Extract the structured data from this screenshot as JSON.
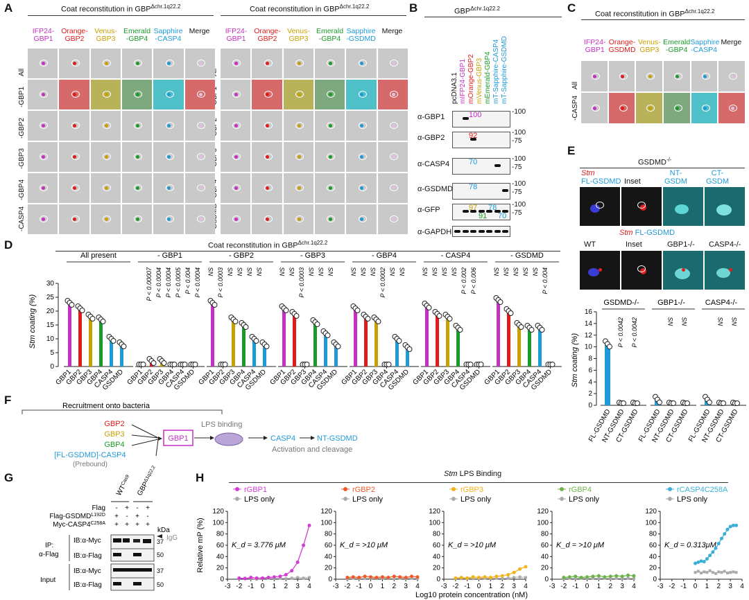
{
  "panels": {
    "A": "A",
    "B": "B",
    "C": "C",
    "D": "D",
    "E": "E",
    "F": "F",
    "G": "G",
    "H": "H"
  },
  "panel_a": {
    "title_left": "Coat reconstitution in GBP",
    "title_sup": "Δchr.1q22.2",
    "left": {
      "columns": [
        {
          "label": "IFP24-\nGBP1",
          "color": "#c330c3"
        },
        {
          "label": "Orange-\nGBP2",
          "color": "#e01b1b"
        },
        {
          "label": "Venus-\nGBP3",
          "color": "#c8a000"
        },
        {
          "label": "Emerald\n-GBP4",
          "color": "#1a9a2a"
        },
        {
          "label": "Sapphire\n-CASP4",
          "color": "#1e9ad6"
        },
        {
          "label": "Merge",
          "color": "#111111"
        }
      ],
      "rows": [
        "All",
        "-GBP1",
        "-GBP2",
        "-GBP3",
        "-GBP4",
        "-CASP4"
      ]
    },
    "right": {
      "columns": [
        {
          "label": "IFP24-\nGBP1",
          "color": "#c330c3"
        },
        {
          "label": "Orange-\nGBP2",
          "color": "#e01b1b"
        },
        {
          "label": "Venus-\nGBP3",
          "color": "#c8a000"
        },
        {
          "label": "Emerald\n-GBP4",
          "color": "#1a9a2a"
        },
        {
          "label": "Sapphire\n-GSDMD",
          "color": "#1e9ad6"
        },
        {
          "label": "Merge",
          "color": "#111111"
        }
      ],
      "rows": [
        "All",
        "-GBP1",
        "-GBP2",
        "-GBP3",
        "-GBP4",
        "-GSDMD"
      ]
    }
  },
  "panel_b": {
    "title": "GBP",
    "title_sup": "Δchr.1q22.2",
    "lanes": [
      {
        "label": "pcDNA3.1",
        "color": "#111111"
      },
      {
        "label": "mIFP24-GBP1",
        "color": "#c330c3"
      },
      {
        "label": "mOrange-GBP2",
        "color": "#e01b1b"
      },
      {
        "label": "mVenus-GBP3",
        "color": "#c8a000"
      },
      {
        "label": "mEmerald-GBP4",
        "color": "#1a9a2a"
      },
      {
        "label": "mT-Sapphire-CASP4",
        "color": "#1e9ad6"
      },
      {
        "label": "mT-Sapphire-GSDMD",
        "color": "#1e9ad6"
      }
    ],
    "blots": [
      {
        "label": "α-GBP1",
        "markers": [
          "100"
        ],
        "size_labels": [
          {
            "text": "100",
            "color": "#c330c3"
          }
        ]
      },
      {
        "label": "α-GBP2",
        "markers": [
          "100",
          "75"
        ],
        "size_labels": [
          {
            "text": "92",
            "color": "#e01b1b"
          }
        ]
      },
      {
        "label": "α-CASP4",
        "markers": [
          "100",
          "75"
        ],
        "size_labels": [
          {
            "text": "70",
            "color": "#1e9ad6"
          }
        ]
      },
      {
        "label": "α-GSDMD",
        "markers": [
          "100",
          "75"
        ],
        "size_labels": [
          {
            "text": "78",
            "color": "#1e9ad6"
          }
        ]
      },
      {
        "label": "α-GFP",
        "markers": [
          "100",
          "75"
        ],
        "size_labels": [
          {
            "text": "97",
            "color": "#c8a000"
          },
          {
            "text": "91",
            "color": "#1a9a2a"
          },
          {
            "text": "78",
            "color": "#1e9ad6"
          },
          {
            "text": "70",
            "color": "#1e9ad6"
          }
        ]
      },
      {
        "label": "α-GAPDH",
        "markers": [],
        "size_labels": []
      }
    ]
  },
  "panel_c": {
    "title": "Coat reconstitution in GBP",
    "title_sup": "Δchr.1q22.2",
    "columns": [
      {
        "label": "IFP24-\nGBP1",
        "color": "#c330c3"
      },
      {
        "label": "Orange-\nGSDMD",
        "color": "#e01b1b"
      },
      {
        "label": "Venus-\nGBP3",
        "color": "#c8a000"
      },
      {
        "label": "Emerald\n-GBP4",
        "color": "#1a9a2a"
      },
      {
        "label": "Sapphire\n-CASP4",
        "color": "#1e9ad6"
      },
      {
        "label": "Merge",
        "color": "#111111"
      }
    ],
    "rows": [
      "All",
      "-CASP4"
    ]
  },
  "panel_d": {
    "title": "Coat reconstitution in GBP",
    "title_sup": "Δchr.1q22.2",
    "ylabel": "Stm coating (%)",
    "yticks": [
      "0",
      "5",
      "10",
      "15",
      "20",
      "25",
      "30"
    ]
  },
  "panel_e": {
    "top_title": "GSDMD",
    "top_title_sup": "-/-",
    "top_labels": [
      {
        "text": "Stm",
        "color": "#e01b1b",
        "italic": true
      },
      {
        "text": "FL-GSDMD",
        "color": "#1e9ad6"
      },
      {
        "text": "Inset",
        "color": "#111111"
      },
      {
        "text": "NT-\nGSDM",
        "color": "#1e9ad6"
      },
      {
        "text": "CT-\nGSDM",
        "color": "#1e9ad6"
      }
    ],
    "mid_title_stm": "Stm",
    "mid_title_rest": "FL-GSDMD",
    "mid_labels": [
      "WT",
      "Inset",
      "GBP1-/-",
      "CASP4-/-"
    ],
    "ylabel": "Stm coating (%)",
    "yticks": [
      "0",
      "2",
      "4",
      "6",
      "8",
      "10",
      "12",
      "14",
      "16"
    ]
  },
  "panel_f": {
    "bracket_label": "Recruitment onto bacteria",
    "list": [
      {
        "text": "GBP2",
        "color": "#e01b1b"
      },
      {
        "text": "GBP3",
        "color": "#c8a000"
      },
      {
        "text": "GBP4",
        "color": "#1a9a2a"
      },
      {
        "text": "[FL-GSDMD]-CASP4",
        "color": "#1e9ad6"
      }
    ],
    "prebound": "(Prebound)",
    "gbp1": "GBP1",
    "lps_binding": "LPS binding",
    "casp4": "CASP4",
    "nt": "NT-GSDMD",
    "activation": "Activation and cleavage"
  },
  "panel_g": {
    "col1": "WT",
    "col1_sup": "Cas9",
    "col2": "GBP",
    "col2_sup": "Δ1q22.2",
    "rows": [
      {
        "label": "Flag",
        "vals": [
          "-",
          "+",
          "-",
          "+"
        ]
      },
      {
        "label": "Flag-GSDMD",
        "sup": "L192D",
        "vals": [
          "+",
          "-",
          "+",
          "-"
        ]
      },
      {
        "label": "Myc-CASP4",
        "sup": "C258A",
        "vals": [
          "+",
          "+",
          "+",
          "+"
        ]
      }
    ],
    "kda": "kDa",
    "ip": "IP:",
    "ip2": "α-Flag",
    "input": "Input",
    "ib_myc": "IB:α-Myc",
    "ib_flag": "IB:α-Flag",
    "igg": "IgG",
    "markers": [
      "37",
      "50",
      "37",
      "50"
    ]
  },
  "panel_h": {
    "title": "Stm LPS Binding",
    "ylabel": "Relative mP (%)",
    "xlabel": "Log10 protein concentration (nM)",
    "lps_only": "LPS only"
  },
  "chart_data": [
    {
      "id": "panel_D",
      "type": "bar",
      "title": "Coat reconstitution in GBPΔchr.1q22.2",
      "ylabel": "Stm coating (%)",
      "ylim": [
        0,
        30
      ],
      "categories": [
        "GBP1",
        "GBP2",
        "GBP3",
        "GBP4",
        "CASP4",
        "GSDMD"
      ],
      "bar_colors": [
        "#c330c3",
        "#e01b1b",
        "#c8a000",
        "#1a9a2a",
        "#1e9ad6",
        "#1e9ad6"
      ],
      "groups": [
        {
          "name": "All present",
          "values": [
            23,
            21,
            18,
            17,
            10,
            8
          ],
          "stats": []
        },
        {
          "name": "- GBP1",
          "values": [
            0,
            2,
            2,
            0,
            0,
            0
          ],
          "stats": [
            "",
            "P < 0.00007",
            "P < 0.0004",
            "P < 0.0004",
            "P < 0.0005",
            "P < 0.004",
            "P < 0.0004"
          ]
        },
        {
          "name": "- GBP2",
          "values": [
            23,
            0,
            17,
            15,
            10,
            8
          ],
          "stats": [
            "NS",
            "P < 0.0003",
            "NS",
            "NS",
            "NS",
            "NS"
          ]
        },
        {
          "name": "- GBP3",
          "values": [
            21,
            19,
            0,
            16,
            12,
            8
          ],
          "stats": [
            "NS",
            "NS",
            "P < 0.0003",
            "NS",
            "NS",
            "NS"
          ]
        },
        {
          "name": "- GBP4",
          "values": [
            21,
            18,
            17,
            0,
            10,
            7
          ],
          "stats": [
            "NS",
            "NS",
            "NS",
            "P < 0.0002",
            "NS",
            "NS"
          ]
        },
        {
          "name": "- CASP4",
          "values": [
            22,
            19,
            18,
            14,
            0,
            0
          ],
          "stats": [
            "NS",
            "NS",
            "NS",
            "NS",
            "P < 0.002",
            "P < 0.006"
          ]
        },
        {
          "name": "- GSDMD",
          "values": [
            24,
            20,
            15,
            14,
            14,
            0
          ],
          "stats": [
            "NS",
            "NS",
            "NS",
            "NS",
            "NS",
            "P < 0.004"
          ]
        }
      ]
    },
    {
      "id": "panel_E",
      "type": "bar",
      "ylabel": "Stm coating (%)",
      "ylim": [
        0,
        16
      ],
      "categories": [
        "FL-GSDMD",
        "NT-GSDMD",
        "CT-GSDMD"
      ],
      "groups": [
        {
          "name": "GSDMD-/-",
          "values": [
            10.5,
            0,
            0
          ],
          "stats": [
            "",
            "P < 0.0042",
            "P < 0.0042"
          ]
        },
        {
          "name": "GBP1-/-",
          "values": [
            1,
            0,
            0
          ],
          "stats": [
            "",
            "NS",
            "NS"
          ]
        },
        {
          "name": "CASP4-/-",
          "values": [
            1,
            0,
            0
          ],
          "stats": [
            "",
            "NS",
            "NS"
          ]
        }
      ]
    },
    {
      "id": "panel_H",
      "type": "line",
      "title": "Stm LPS Binding",
      "xlabel": "Log10 protein concentration (nM)",
      "ylabel": "Relative mP (%)",
      "xlim": [
        -3,
        4
      ],
      "ylim": [
        0,
        120
      ],
      "xticks": [
        "-3",
        "-2",
        "-1",
        "0",
        "1",
        "2",
        "3",
        "4"
      ],
      "yticks": [
        "0",
        "20",
        "40",
        "60",
        "80",
        "100",
        "120"
      ],
      "subplots": [
        {
          "protein": "rGBP1",
          "color": "#d43bd4",
          "kd": "K_d = 3.776 μM",
          "x": [
            -2,
            -1.5,
            -1,
            -0.5,
            0,
            0.5,
            1,
            1.5,
            2,
            2.5,
            3,
            3.5,
            4
          ],
          "y": [
            2,
            1,
            3,
            2,
            2,
            3,
            4,
            5,
            8,
            15,
            30,
            60,
            95
          ],
          "lps": [
            1,
            2,
            1,
            0,
            1,
            2,
            1,
            2,
            1,
            2,
            3,
            2,
            3
          ]
        },
        {
          "protein": "rGBP2",
          "color": "#f05a28",
          "kd": "K_d = >10 μM",
          "x": [
            -2,
            -1.5,
            -1,
            -0.5,
            0,
            0.5,
            1,
            1.5,
            2,
            2.5,
            3,
            3.5,
            4
          ],
          "y": [
            3,
            4,
            3,
            5,
            4,
            3,
            4,
            3,
            5,
            4,
            3,
            5,
            4
          ],
          "lps": [
            1,
            2,
            1,
            1,
            2,
            1,
            2,
            1,
            1,
            2,
            1,
            2,
            1
          ]
        },
        {
          "protein": "rGBP3",
          "color": "#f2b31a",
          "kd": "K_d = >10 μM",
          "x": [
            -2,
            -1.5,
            -1,
            -0.5,
            0,
            0.5,
            1,
            1.5,
            2,
            2.5,
            3,
            3.5,
            4
          ],
          "y": [
            2,
            3,
            2,
            4,
            3,
            4,
            3,
            5,
            6,
            8,
            12,
            18,
            22
          ],
          "lps": [
            1,
            1,
            2,
            1,
            1,
            2,
            1,
            2,
            1,
            2,
            3,
            4,
            3
          ]
        },
        {
          "protein": "rGBP4",
          "color": "#6cb34a",
          "kd": "K_d = >10 μM",
          "x": [
            -2,
            -1.5,
            -1,
            -0.5,
            0,
            0.5,
            1,
            1.5,
            2,
            2.5,
            3,
            3.5,
            4
          ],
          "y": [
            3,
            4,
            5,
            3,
            4,
            5,
            6,
            4,
            5,
            6,
            5,
            7,
            6
          ],
          "lps": [
            1,
            2,
            1,
            2,
            1,
            2,
            1,
            2,
            1,
            2,
            1,
            2,
            1
          ]
        },
        {
          "protein": "rCASP4C258A",
          "color": "#3ab0d6",
          "kd": "K_d = 0.313μM",
          "x": [
            0,
            0.25,
            0.5,
            0.75,
            1,
            1.25,
            1.5,
            1.75,
            2,
            2.25,
            2.5,
            2.75,
            3,
            3.25,
            3.5
          ],
          "y": [
            28,
            30,
            32,
            31,
            36,
            42,
            48,
            55,
            63,
            72,
            80,
            88,
            93,
            95,
            95
          ],
          "lps": [
            12,
            14,
            11,
            13,
            12,
            15,
            12,
            10,
            13,
            12,
            14,
            11,
            12,
            13,
            12
          ]
        }
      ]
    }
  ]
}
